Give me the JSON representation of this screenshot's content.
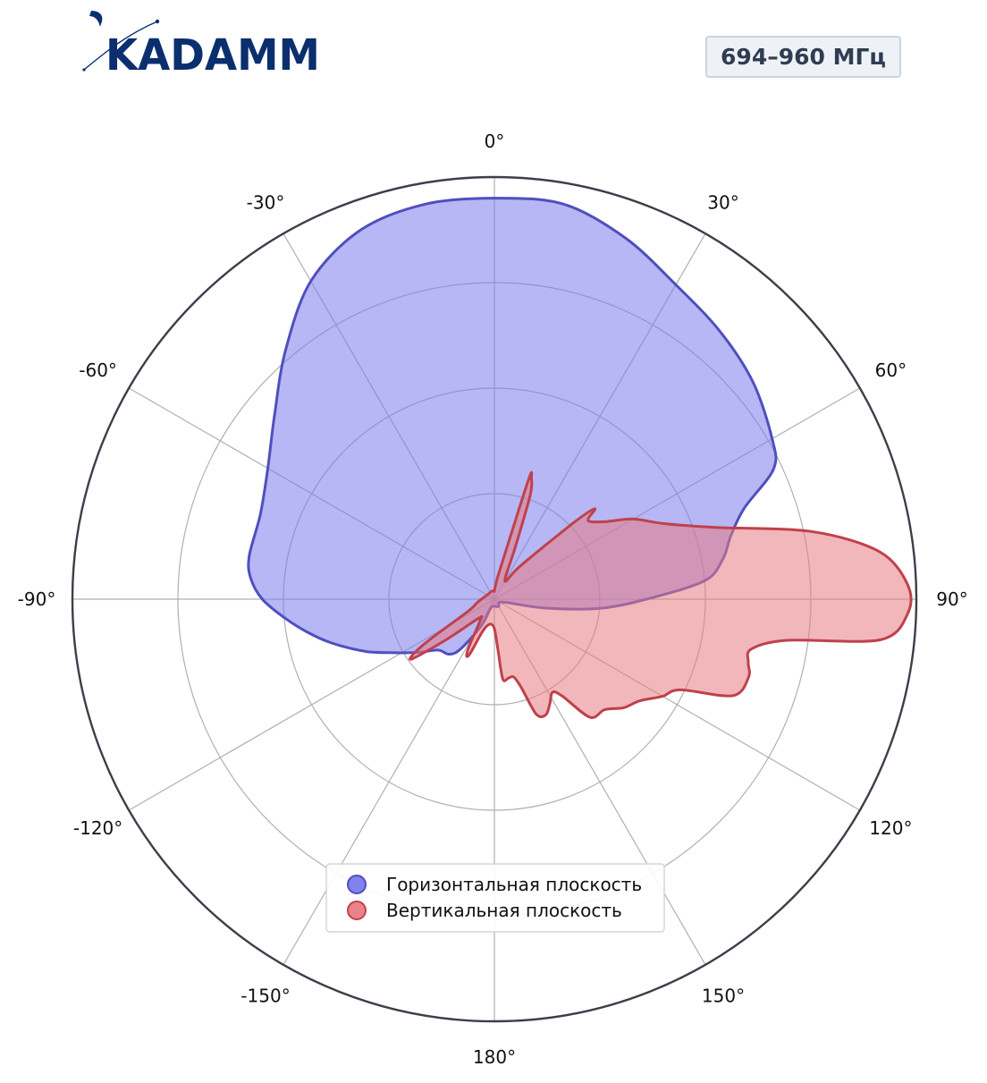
{
  "brand": {
    "name": "KADAMM",
    "color": "#0b2f6e"
  },
  "badge": {
    "text": "694–960 МГц"
  },
  "chart_data": {
    "type": "polar-area",
    "title": "",
    "theta_zero": "top",
    "theta_direction": "clockwise",
    "angle_ticks": [
      "0°",
      "30°",
      "60°",
      "90°",
      "120°",
      "150°",
      "180°",
      "-150°",
      "-120°",
      "-90°",
      "-60°",
      "-30°"
    ],
    "angle_tick_degrees": [
      0,
      30,
      60,
      90,
      120,
      150,
      180,
      210,
      240,
      270,
      300,
      330
    ],
    "r_range": [
      0,
      1
    ],
    "r_grid": [
      0.25,
      0.5,
      0.75
    ],
    "r_tick_labels_shown": false,
    "grid": true,
    "legend_position": "bottom-center",
    "series": [
      {
        "name": "Горизонтальная плоскость",
        "color": "#7b7bec",
        "edge_color": "#4f4fbf",
        "points": [
          [
            0,
            0.95
          ],
          [
            10,
            0.95
          ],
          [
            20,
            0.91
          ],
          [
            30,
            0.86
          ],
          [
            40,
            0.83
          ],
          [
            50,
            0.8
          ],
          [
            60,
            0.76
          ],
          [
            65,
            0.73
          ],
          [
            70,
            0.63
          ],
          [
            75,
            0.58
          ],
          [
            80,
            0.55
          ],
          [
            85,
            0.5
          ],
          [
            90,
            0.36
          ],
          [
            95,
            0.25
          ],
          [
            100,
            0.12
          ],
          [
            110,
            0.02
          ],
          [
            150,
            0.02
          ],
          [
            200,
            0.02
          ],
          [
            205,
            0.06
          ],
          [
            210,
            0.1
          ],
          [
            215,
            0.15
          ],
          [
            220,
            0.17
          ],
          [
            228,
            0.18
          ],
          [
            235,
            0.22
          ],
          [
            242,
            0.27
          ],
          [
            248,
            0.33
          ],
          [
            255,
            0.4
          ],
          [
            260,
            0.45
          ],
          [
            265,
            0.5
          ],
          [
            270,
            0.55
          ],
          [
            275,
            0.58
          ],
          [
            280,
            0.59
          ],
          [
            290,
            0.59
          ],
          [
            300,
            0.62
          ],
          [
            310,
            0.68
          ],
          [
            320,
            0.77
          ],
          [
            330,
            0.87
          ],
          [
            340,
            0.93
          ],
          [
            350,
            0.95
          ]
        ]
      },
      {
        "name": "Вертикальная плоскость",
        "color": "#e87b83",
        "edge_color": "#c0414b",
        "points": [
          [
            0,
            0.02
          ],
          [
            8,
            0.05
          ],
          [
            14,
            0.14
          ],
          [
            16,
            0.3
          ],
          [
            17,
            0.3
          ],
          [
            19,
            0.26
          ],
          [
            22,
            0.13
          ],
          [
            30,
            0.05
          ],
          [
            38,
            0.1
          ],
          [
            46,
            0.26
          ],
          [
            48,
            0.32
          ],
          [
            50,
            0.29
          ],
          [
            55,
            0.32
          ],
          [
            60,
            0.38
          ],
          [
            66,
            0.44
          ],
          [
            72,
            0.55
          ],
          [
            78,
            0.77
          ],
          [
            83,
            0.92
          ],
          [
            88,
            0.98
          ],
          [
            92,
            0.98
          ],
          [
            96,
            0.92
          ],
          [
            98,
            0.7
          ],
          [
            101,
            0.62
          ],
          [
            104,
            0.62
          ],
          [
            107,
            0.63
          ],
          [
            112,
            0.61
          ],
          [
            116,
            0.49
          ],
          [
            120,
            0.46
          ],
          [
            125,
            0.42
          ],
          [
            130,
            0.4
          ],
          [
            135,
            0.37
          ],
          [
            141,
            0.36
          ],
          [
            145,
            0.28
          ],
          [
            148,
            0.26
          ],
          [
            152,
            0.28
          ],
          [
            156,
            0.3
          ],
          [
            160,
            0.29
          ],
          [
            163,
            0.22
          ],
          [
            166,
            0.19
          ],
          [
            170,
            0.19
          ],
          [
            174,
            0.19
          ],
          [
            176,
            0.12
          ],
          [
            180,
            0.07
          ],
          [
            190,
            0.06
          ],
          [
            200,
            0.08
          ],
          [
            204,
            0.14
          ],
          [
            206,
            0.15
          ],
          [
            208,
            0.13
          ],
          [
            214,
            0.06
          ],
          [
            220,
            0.06
          ],
          [
            230,
            0.15
          ],
          [
            234,
            0.24
          ],
          [
            236,
            0.23
          ],
          [
            238,
            0.18
          ],
          [
            245,
            0.07
          ],
          [
            260,
            0.04
          ],
          [
            300,
            0.02
          ],
          [
            340,
            0.02
          ],
          [
            355,
            0.02
          ]
        ]
      }
    ]
  }
}
